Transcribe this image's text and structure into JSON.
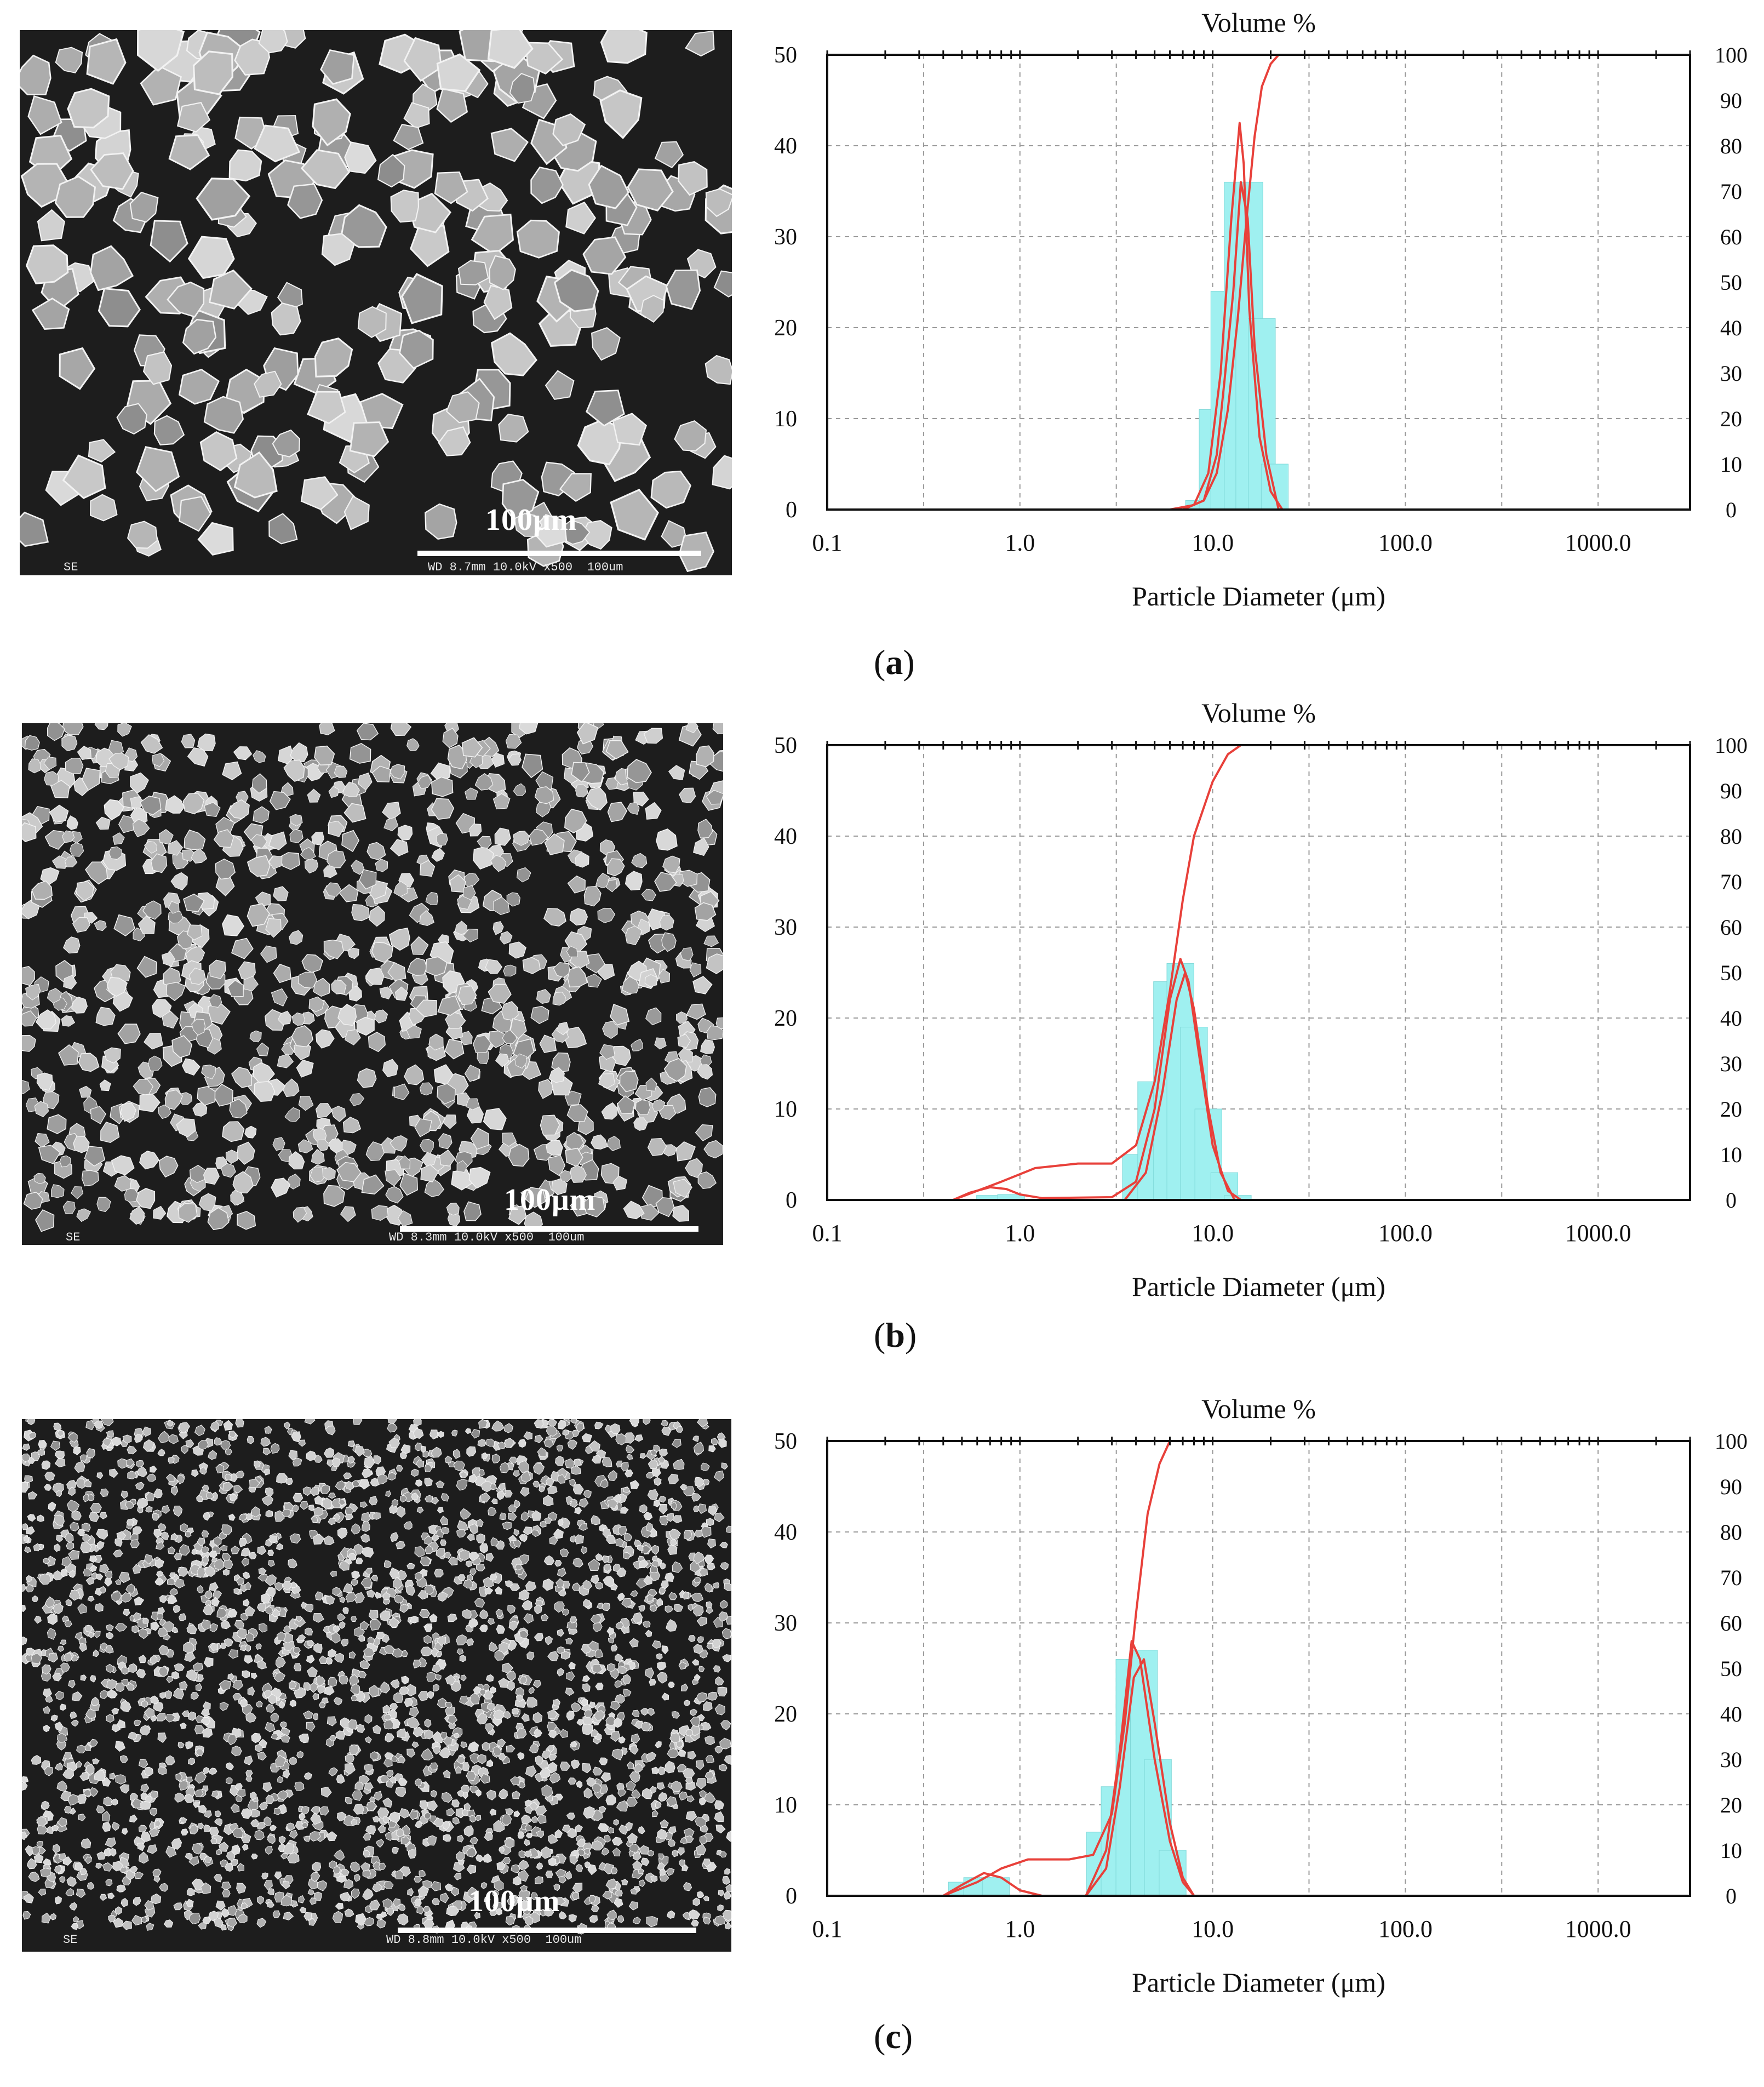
{
  "panels": [
    {
      "id": "a",
      "label_open": "(",
      "label_letter": "a",
      "label_close": ")",
      "sem": {
        "scale_label": "100μm",
        "corner_label": "SE",
        "info": "WD 8.7mm 10.0kV x500  100um",
        "grain_size": "coarse"
      }
    },
    {
      "id": "b",
      "label_open": "(",
      "label_letter": "b",
      "label_close": ")",
      "sem": {
        "scale_label": "100μm",
        "corner_label": "SE",
        "info": "WD 8.3mm 10.0kV x500  100um",
        "grain_size": "medium"
      }
    },
    {
      "id": "c",
      "label_open": "(",
      "label_letter": "c",
      "label_close": ")",
      "sem": {
        "scale_label": "100μm",
        "corner_label": "SE",
        "info": "WD 8.8mm 10.0kV x500  100um",
        "grain_size": "fine"
      }
    }
  ],
  "colors": {
    "histogram_fill": "#9ff0f0",
    "curve": "#e8403a",
    "grid": "#9a9a9a",
    "sem_background": "#1d1d1d"
  },
  "chart_data": [
    {
      "type": "bar",
      "title": "Volume %",
      "xlabel": "Particle Diameter (μm)",
      "x_scale": "log",
      "xlim": [
        0.1,
        3000
      ],
      "x_ticks": [
        "0.1",
        "1.0",
        "10.0",
        "100.0",
        "1000.0"
      ],
      "ylim_left": [
        0,
        50
      ],
      "y_ticks_left": [
        "0",
        "10",
        "20",
        "30",
        "40",
        "50"
      ],
      "ylim_right": [
        0,
        100
      ],
      "y_ticks_right": [
        "0",
        "10",
        "20",
        "30",
        "40",
        "50",
        "60",
        "70",
        "80",
        "90",
        "100"
      ],
      "grid": true,
      "histogram": {
        "x": [
          8.5,
          10,
          11.5,
          13.5,
          15.5,
          18,
          21
        ],
        "values": [
          1,
          11,
          24,
          36,
          36,
          21,
          5
        ]
      },
      "series": [
        {
          "type": "line",
          "points": [
            [
              0.4,
              0
            ],
            [
              6,
              0
            ],
            [
              8,
              0.5
            ],
            [
              9.5,
              4
            ],
            [
              11,
              15
            ],
            [
              12.5,
              32
            ],
            [
              13.8,
              42.5
            ],
            [
              14.5,
              38
            ],
            [
              15.5,
              22
            ],
            [
              17.5,
              8
            ],
            [
              20,
              2
            ],
            [
              23,
              0
            ],
            [
              3000,
              0
            ]
          ]
        },
        {
          "type": "line",
          "points": [
            [
              0.4,
              0
            ],
            [
              7,
              0
            ],
            [
              9,
              1
            ],
            [
              10.5,
              6
            ],
            [
              11.5,
              14
            ],
            [
              12.8,
              24
            ],
            [
              14,
              36
            ],
            [
              15.2,
              32
            ],
            [
              16.5,
              18
            ],
            [
              19,
              6
            ],
            [
              22,
              0
            ],
            [
              3000,
              0
            ]
          ]
        },
        {
          "type": "cumulative",
          "axis": "right",
          "points": [
            [
              0.4,
              0
            ],
            [
              7,
              0
            ],
            [
              9,
              2
            ],
            [
              10.5,
              8
            ],
            [
              12,
              22
            ],
            [
              13.5,
              42
            ],
            [
              15,
              64
            ],
            [
              16.5,
              82
            ],
            [
              18,
              93
            ],
            [
              20,
              98
            ],
            [
              22,
              100
            ],
            [
              3000,
              100
            ]
          ]
        }
      ]
    },
    {
      "type": "bar",
      "title": "Volume %",
      "xlabel": "Particle Diameter (μm)",
      "x_scale": "log",
      "xlim": [
        0.1,
        3000
      ],
      "x_ticks": [
        "0.1",
        "1.0",
        "10.0",
        "100.0",
        "1000.0"
      ],
      "ylim_left": [
        0,
        50
      ],
      "y_ticks_left": [
        "0",
        "10",
        "20",
        "30",
        "40",
        "50"
      ],
      "ylim_right": [
        0,
        100
      ],
      "y_ticks_right": [
        "0",
        "10",
        "20",
        "30",
        "40",
        "50",
        "60",
        "70",
        "80",
        "90",
        "100"
      ],
      "grid": true,
      "histogram": {
        "x": [
          0.7,
          0.9,
          4,
          4.8,
          5.8,
          6.8,
          8,
          9.5,
          11.5,
          13.5
        ],
        "values": [
          0.5,
          0.6,
          5,
          13,
          24,
          26,
          19,
          10,
          3,
          0.5
        ]
      },
      "series": [
        {
          "type": "line",
          "points": [
            [
              0.45,
              0
            ],
            [
              0.55,
              0.8
            ],
            [
              0.7,
              1.4
            ],
            [
              0.85,
              1.2
            ],
            [
              1.0,
              0.6
            ],
            [
              1.3,
              0.2
            ],
            [
              3,
              0.3
            ],
            [
              4,
              2
            ],
            [
              5,
              10
            ],
            [
              6,
              22
            ],
            [
              6.8,
              26.5
            ],
            [
              7.5,
              24
            ],
            [
              8.5,
              16
            ],
            [
              10,
              6
            ],
            [
              12,
              1
            ],
            [
              14,
              0
            ],
            [
              3000,
              0
            ]
          ]
        },
        {
          "type": "line",
          "points": [
            [
              0.45,
              0
            ],
            [
              3.5,
              0
            ],
            [
              4.5,
              3
            ],
            [
              5.5,
              12
            ],
            [
              6.5,
              22
            ],
            [
              7.2,
              25
            ],
            [
              8,
              21
            ],
            [
              9.5,
              10
            ],
            [
              11,
              3
            ],
            [
              13,
              0
            ],
            [
              3000,
              0
            ]
          ]
        },
        {
          "type": "cumulative",
          "axis": "right",
          "points": [
            [
              0.45,
              0
            ],
            [
              0.6,
              2
            ],
            [
              0.8,
              4
            ],
            [
              1.2,
              7
            ],
            [
              2,
              8
            ],
            [
              3,
              8
            ],
            [
              4,
              12
            ],
            [
              5,
              26
            ],
            [
              6,
              46
            ],
            [
              7,
              66
            ],
            [
              8,
              80
            ],
            [
              10,
              92
            ],
            [
              12,
              98
            ],
            [
              14,
              100
            ],
            [
              3000,
              100
            ]
          ]
        }
      ]
    },
    {
      "type": "bar",
      "title": "Volume %",
      "xlabel": "Particle Diameter (μm)",
      "x_scale": "log",
      "xlim": [
        0.1,
        3000
      ],
      "x_ticks": [
        "0.1",
        "1.0",
        "10.0",
        "100.0",
        "1000.0"
      ],
      "ylim_left": [
        0,
        50
      ],
      "y_ticks_left": [
        "0",
        "10",
        "20",
        "30",
        "40",
        "50"
      ],
      "ylim_right": [
        0,
        100
      ],
      "y_ticks_right": [
        "0",
        "10",
        "20",
        "30",
        "40",
        "50",
        "60",
        "70",
        "80",
        "90",
        "100"
      ],
      "grid": true,
      "histogram": {
        "x": [
          0.5,
          0.6,
          0.75,
          2.6,
          3.1,
          3.7,
          4.4,
          5.2,
          6.2
        ],
        "values": [
          1.5,
          2,
          2,
          7,
          12,
          26,
          27,
          15,
          5
        ]
      },
      "series": [
        {
          "type": "line",
          "points": [
            [
              0.4,
              0
            ],
            [
              0.5,
              1.2
            ],
            [
              0.65,
              2.5
            ],
            [
              0.8,
              2
            ],
            [
              1.0,
              0.6
            ],
            [
              1.3,
              0
            ],
            [
              2.2,
              0
            ],
            [
              2.8,
              5
            ],
            [
              3.3,
              16
            ],
            [
              3.8,
              28
            ],
            [
              4.2,
              26
            ],
            [
              5,
              15
            ],
            [
              6,
              6
            ],
            [
              7,
              1.5
            ],
            [
              8,
              0
            ],
            [
              3000,
              0
            ]
          ]
        },
        {
          "type": "line",
          "points": [
            [
              0.4,
              0
            ],
            [
              2.2,
              0
            ],
            [
              2.8,
              3
            ],
            [
              3.3,
              12
            ],
            [
              3.9,
              24
            ],
            [
              4.4,
              26
            ],
            [
              5,
              19
            ],
            [
              6,
              8
            ],
            [
              7,
              2
            ],
            [
              8,
              0
            ],
            [
              3000,
              0
            ]
          ]
        },
        {
          "type": "cumulative",
          "axis": "right",
          "points": [
            [
              0.4,
              0
            ],
            [
              0.6,
              3
            ],
            [
              0.8,
              6
            ],
            [
              1.1,
              8
            ],
            [
              1.8,
              8
            ],
            [
              2.4,
              9
            ],
            [
              3,
              18
            ],
            [
              3.5,
              38
            ],
            [
              4,
              62
            ],
            [
              4.6,
              84
            ],
            [
              5.3,
              95
            ],
            [
              6,
              100
            ],
            [
              3000,
              100
            ]
          ]
        }
      ]
    }
  ]
}
